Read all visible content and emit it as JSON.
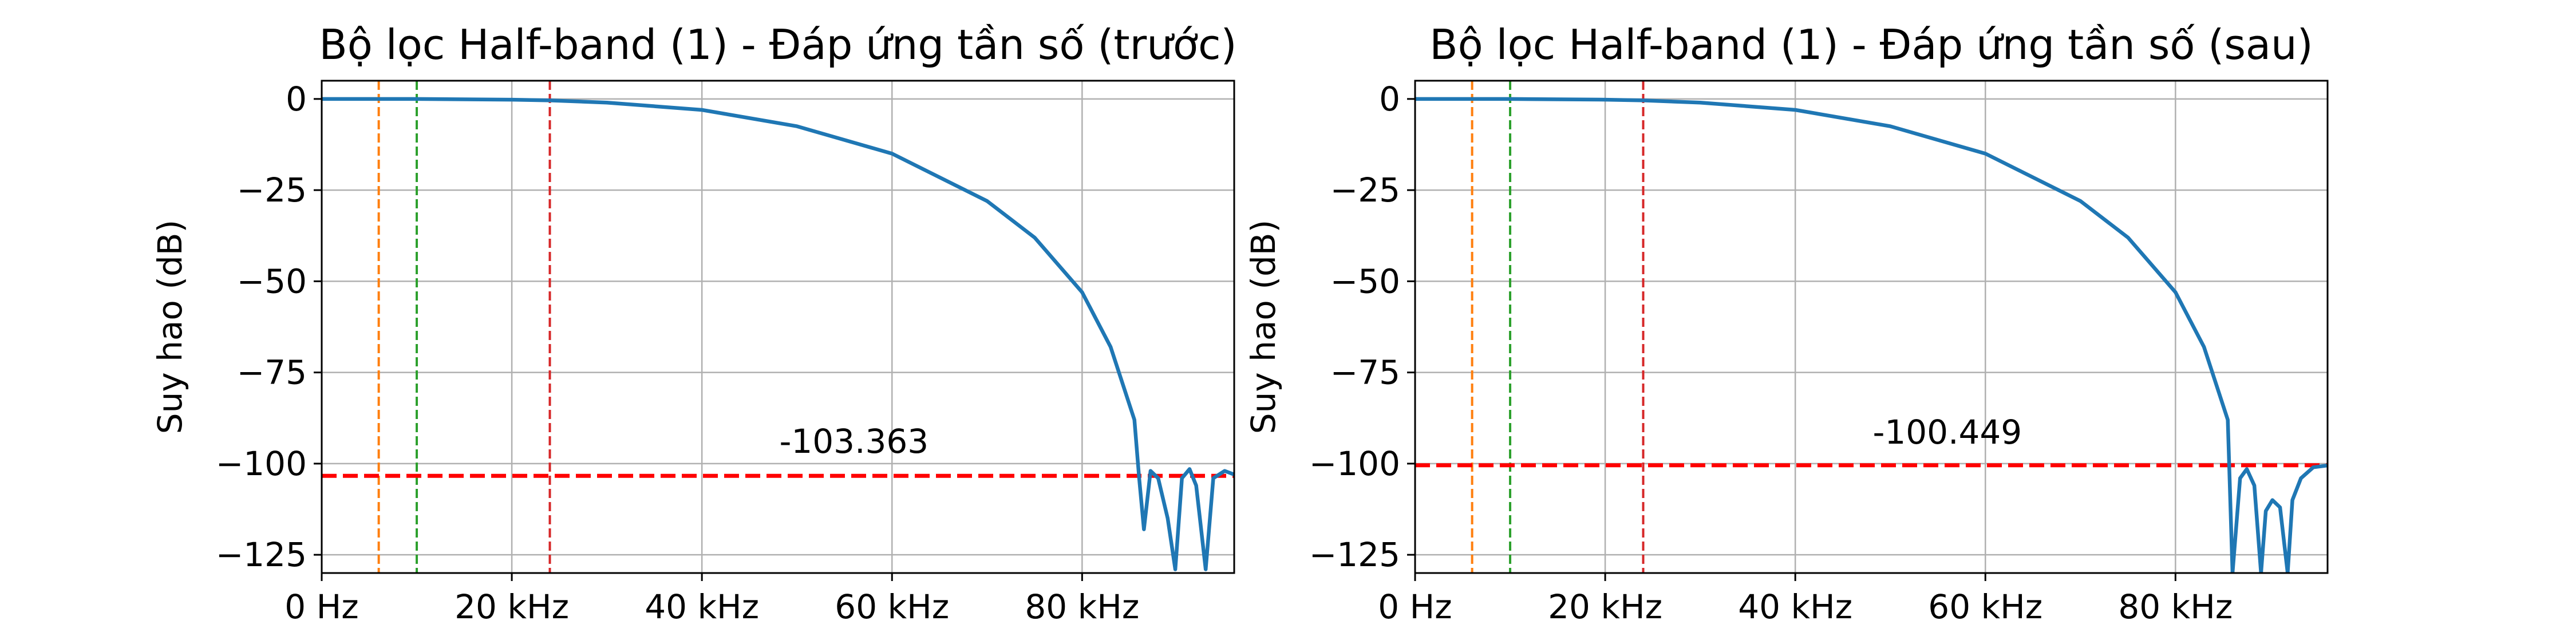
{
  "chart_data": [
    {
      "type": "line",
      "title": "Bộ lọc Half-band (1) - Đáp ứng tần số (trước)",
      "xlabel": "",
      "ylabel": "Suy hao (dB)",
      "xlim": [
        0,
        96
      ],
      "ylim": [
        -130,
        5
      ],
      "xticks": [
        0,
        20,
        40,
        60,
        80
      ],
      "xtick_labels": [
        "0 Hz",
        "20 kHz",
        "40 kHz",
        "60 kHz",
        "80 kHz"
      ],
      "yticks": [
        0,
        -25,
        -50,
        -75,
        -100,
        -125
      ],
      "ytick_labels": [
        "0",
        "−25",
        "−50",
        "−75",
        "−100",
        "−125"
      ],
      "grid": true,
      "series": [
        {
          "color": "#1f77b4",
          "x": [
            0,
            10,
            20,
            24,
            30,
            40,
            50,
            60,
            70,
            75,
            80,
            83,
            85.5,
            86.0,
            86.5,
            87.2,
            88.0,
            89.0,
            89.8,
            90.5,
            91.3,
            92.0,
            93.0,
            93.8,
            95.0,
            96.0
          ],
          "y": [
            0,
            0,
            -0.2,
            -0.4,
            -1,
            -3,
            -7.5,
            -15,
            -28,
            -38,
            -53,
            -68,
            -88,
            -104,
            -118,
            -102,
            -104,
            -115,
            -129,
            -104,
            -101.5,
            -106,
            -129,
            -104,
            -102,
            -103
          ]
        }
      ],
      "vlines": [
        {
          "x": 6,
          "color": "#ff7f0e",
          "style": "dashed"
        },
        {
          "x": 10,
          "color": "#2ca02c",
          "style": "dashed"
        },
        {
          "x": 24,
          "color": "#d62728",
          "style": "dashed"
        }
      ],
      "hline": {
        "y": -103.363,
        "color": "#ff0000",
        "style": "dashed"
      },
      "annotation": {
        "text": "-103.363",
        "x": 56,
        "y": -97
      }
    },
    {
      "type": "line",
      "title": "Bộ lọc Half-band (1) - Đáp ứng tần số (sau)",
      "xlabel": "",
      "ylabel": "Suy hao (dB)",
      "xlim": [
        0,
        96
      ],
      "ylim": [
        -130,
        5
      ],
      "xticks": [
        0,
        20,
        40,
        60,
        80
      ],
      "xtick_labels": [
        "0 Hz",
        "20 kHz",
        "40 kHz",
        "60 kHz",
        "80 kHz"
      ],
      "yticks": [
        0,
        -25,
        -50,
        -75,
        -100,
        -125
      ],
      "ytick_labels": [
        "0",
        "−25",
        "−50",
        "−75",
        "−100",
        "−125"
      ],
      "grid": true,
      "series": [
        {
          "color": "#1f77b4",
          "x": [
            0,
            10,
            20,
            24,
            30,
            40,
            50,
            60,
            70,
            75,
            80,
            83,
            85.5,
            86.0,
            86.8,
            87.5,
            88.3,
            89.0,
            89.5,
            90.2,
            91.0,
            91.8,
            92.3,
            93.2,
            94.5,
            96.0
          ],
          "y": [
            0,
            0,
            -0.2,
            -0.4,
            -1,
            -3,
            -7.5,
            -15,
            -28,
            -38,
            -53,
            -68,
            -88,
            -130,
            -104,
            -101.5,
            -106,
            -130,
            -113,
            -110,
            -112,
            -130,
            -110,
            -104,
            -101,
            -100.5
          ]
        }
      ],
      "vlines": [
        {
          "x": 6,
          "color": "#ff7f0e",
          "style": "dashed"
        },
        {
          "x": 10,
          "color": "#2ca02c",
          "style": "dashed"
        },
        {
          "x": 24,
          "color": "#d62728",
          "style": "dashed"
        }
      ],
      "hline": {
        "y": -100.449,
        "color": "#ff0000",
        "style": "dashed"
      },
      "annotation": {
        "text": "-100.449",
        "x": 56,
        "y": -94.5
      }
    }
  ]
}
